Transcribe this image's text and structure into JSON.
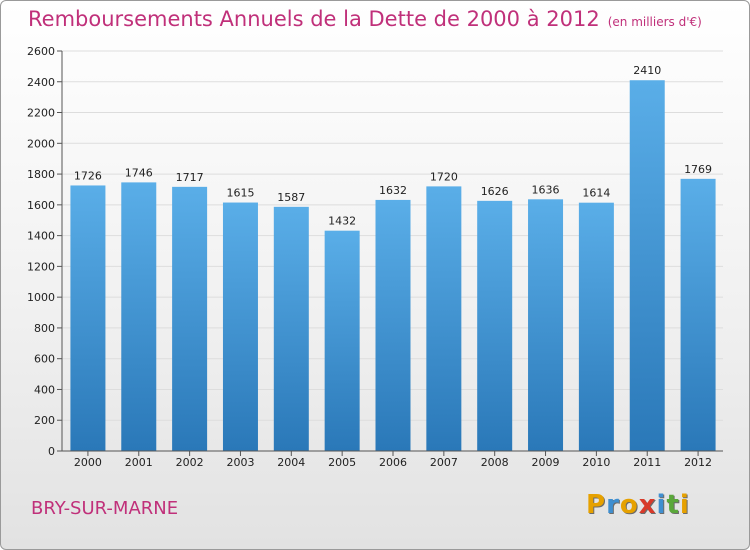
{
  "header": {
    "title": "Remboursements Annuels de la Dette de 2000 à 2012",
    "subtitle": "(en milliers d'€)"
  },
  "footer": {
    "place": "BRY-SUR-MARNE",
    "brand": [
      "P",
      "r",
      "o",
      "x",
      "i",
      "t",
      "i"
    ],
    "brand_colors": [
      "#e6a100",
      "#3f8fd0",
      "#e6a100",
      "#d83a2a",
      "#3f8fd0",
      "#5aa83a",
      "#e6a100"
    ]
  },
  "colors": {
    "bar_top": "#5aaee8",
    "bar_bottom": "#2a78b8",
    "axis": "#555555",
    "grid": "#dddddd",
    "title": "#c0307a"
  },
  "chart_data": {
    "type": "bar",
    "categories": [
      "2000",
      "2001",
      "2002",
      "2003",
      "2004",
      "2005",
      "2006",
      "2007",
      "2008",
      "2009",
      "2010",
      "2011",
      "2012"
    ],
    "values": [
      1726,
      1746,
      1717,
      1615,
      1587,
      1432,
      1632,
      1720,
      1626,
      1636,
      1614,
      2410,
      1769
    ],
    "title": "Remboursements Annuels de la Dette de 2000 à 2012",
    "subtitle": "(en milliers d'€)",
    "xlabel": "",
    "ylabel": "",
    "ylim": [
      0,
      2600
    ],
    "yticks": [
      0,
      200,
      400,
      600,
      800,
      1000,
      1200,
      1400,
      1600,
      1800,
      2000,
      2200,
      2400,
      2600
    ],
    "grid": true,
    "legend": "none"
  }
}
